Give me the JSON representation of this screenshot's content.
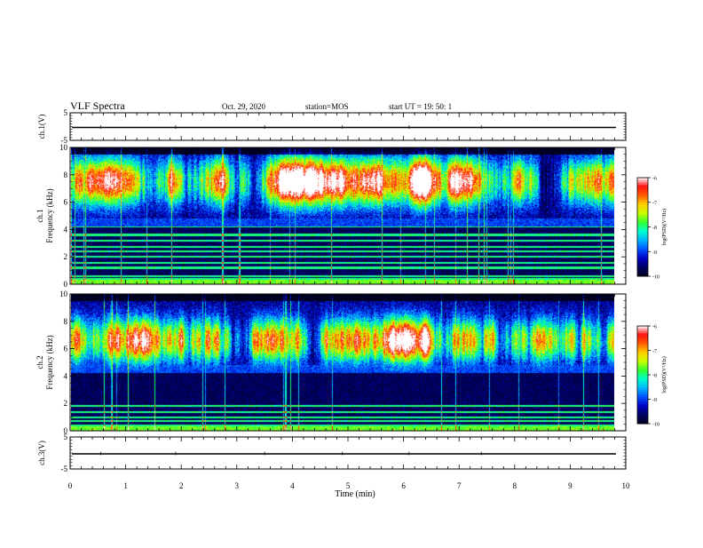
{
  "header": {
    "title": "VLF Spectra",
    "date": "Oct. 29, 2020",
    "station": "station=MOS",
    "start": "start  UT =   19: 50: 1"
  },
  "colors": {
    "colormap": [
      "#000020",
      "#000060",
      "#0000c8",
      "#0050ff",
      "#00b4ff",
      "#00ffd0",
      "#30ff30",
      "#c8ff00",
      "#ffd000",
      "#ff6000",
      "#ff1010",
      "#ffffff"
    ]
  },
  "chart_data": [
    {
      "type": "line",
      "panel": "ch1-waveform",
      "ylabel": "ch.1(V)",
      "ylim": [
        -5,
        5
      ],
      "yticks": [
        "5",
        "-5"
      ],
      "xlim": [
        0,
        10
      ],
      "trace_level": 0
    },
    {
      "type": "heatmap",
      "panel": "ch1-spectrogram",
      "ylabel": "ch.1\nFrequency (kHz)",
      "ylim": [
        0,
        10
      ],
      "yticks": [
        "0",
        "2",
        "4",
        "6",
        "8",
        "10"
      ],
      "xlim": [
        0,
        9.85
      ],
      "band_center_khz": 7.5,
      "band_halfwidth_khz": 1.6,
      "lines_khz": [
        0.4,
        0.6,
        1.2,
        1.55,
        2.0,
        2.4,
        2.75,
        3.2,
        3.6,
        4.2
      ],
      "colorbar": {
        "label": "log(PSD)(V²/Hz)",
        "range": [
          -10,
          -6
        ],
        "ticks": [
          "-6",
          "-7",
          "-8",
          "-9",
          "-10"
        ]
      }
    },
    {
      "type": "heatmap",
      "panel": "ch2-spectrogram",
      "ylabel": "ch.2\nFrequency (kHz)",
      "ylim": [
        0,
        10
      ],
      "yticks": [
        "0",
        "2",
        "4",
        "6",
        "8",
        "10"
      ],
      "xlim": [
        0,
        9.85
      ],
      "band_center_khz": 6.6,
      "band_halfwidth_khz": 1.5,
      "lines_khz": [
        0.4,
        0.7,
        1.0,
        1.35,
        1.8
      ],
      "colorbar": {
        "label": "log(PSD)(V²/Hz)",
        "range": [
          -10,
          -6
        ],
        "ticks": [
          "-6",
          "-7",
          "-8",
          "-9",
          "-10"
        ]
      }
    },
    {
      "type": "line",
      "panel": "ch3-waveform",
      "ylabel": "ch.3(V)",
      "ylim": [
        -5,
        5
      ],
      "yticks": [
        "5",
        "-5"
      ],
      "xlim": [
        0,
        10
      ],
      "trace_level": 0
    }
  ],
  "xaxis": {
    "label": "Time (min)",
    "range": [
      0,
      10
    ],
    "ticks": [
      "0",
      "1",
      "2",
      "3",
      "4",
      "5",
      "6",
      "7",
      "8",
      "9",
      "10"
    ]
  }
}
